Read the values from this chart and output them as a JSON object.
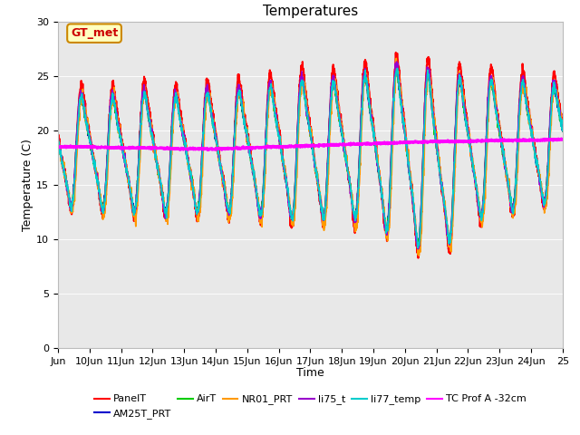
{
  "title": "Temperatures",
  "xlabel": "Time",
  "ylabel": "Temperature (C)",
  "ylim": [
    0,
    30
  ],
  "annotation_text": "GT_met",
  "annotation_color": "#cc0000",
  "annotation_bg": "#ffffc0",
  "annotation_border": "#cc8800",
  "series": [
    {
      "label": "PanelT",
      "color": "#ff0000",
      "lw": 1.5
    },
    {
      "label": "AM25T_PRT",
      "color": "#0000cc",
      "lw": 1.2
    },
    {
      "label": "AirT",
      "color": "#00cc00",
      "lw": 1.2
    },
    {
      "label": "NR01_PRT",
      "color": "#ff9900",
      "lw": 1.2
    },
    {
      "label": "li75_t",
      "color": "#9900cc",
      "lw": 1.2
    },
    {
      "label": "li77_temp",
      "color": "#00cccc",
      "lw": 1.2
    },
    {
      "label": "TC Prof A -32cm",
      "color": "#ff00ff",
      "lw": 2.0
    }
  ],
  "bg_color": "#e8e8e8",
  "fig_bg": "#ffffff",
  "tick_labels": [
    "Jun",
    "10Jun",
    "11Jun",
    "12Jun",
    "13Jun",
    "14Jun",
    "15Jun",
    "16Jun",
    "17Jun",
    "18Jun",
    "19Jun",
    "20Jun",
    "21Jun",
    "22Jun",
    "23Jun",
    "24Jun",
    "25"
  ],
  "yticks": [
    0,
    5,
    10,
    15,
    20,
    25,
    30
  ],
  "title_fontsize": 11,
  "axis_fontsize": 9,
  "tick_fontsize": 8,
  "legend_fontsize": 8
}
